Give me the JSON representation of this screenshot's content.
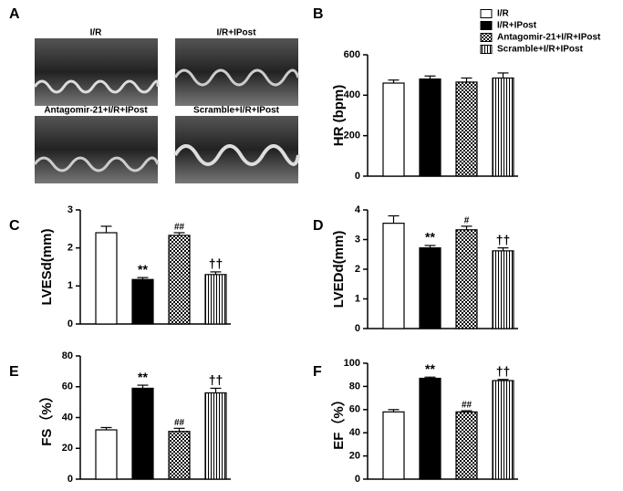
{
  "panels": [
    "A",
    "B",
    "C",
    "D",
    "E",
    "F"
  ],
  "images": [
    "I/R",
    "I/R+IPost",
    "Antagomir-21+I/R+IPost",
    "Scramble+I/R+IPost"
  ],
  "legend": [
    {
      "name": "I/R",
      "fill": "white"
    },
    {
      "name": "I/R+IPost",
      "fill": "black"
    },
    {
      "name": "Antagomir-21+I/R+IPost",
      "fill": "crosshatch"
    },
    {
      "name": "Scramble+I/R+IPost",
      "fill": "vertical"
    }
  ],
  "chart_data": [
    {
      "type": "bar",
      "ylabel": "HR (bpm)",
      "values": [
        460,
        480,
        465,
        485
      ],
      "errors": [
        15,
        15,
        20,
        25
      ],
      "annotations": [
        null,
        null,
        null,
        null
      ],
      "ylim": [
        0,
        600
      ],
      "yticks": [
        0,
        200,
        400,
        600
      ]
    },
    {
      "type": "bar",
      "ylabel": "LVESd(mm)",
      "values": [
        2.4,
        1.17,
        2.33,
        1.3
      ],
      "errors": [
        0.17,
        0.05,
        0.07,
        0.07
      ],
      "annotations": [
        null,
        "**",
        "##",
        "††"
      ],
      "ylim": [
        0,
        3
      ],
      "yticks": [
        0,
        1,
        2,
        3
      ]
    },
    {
      "type": "bar",
      "ylabel": "LVEDd(mm)",
      "values": [
        3.55,
        2.72,
        3.33,
        2.62
      ],
      "errors": [
        0.25,
        0.08,
        0.12,
        0.1
      ],
      "annotations": [
        null,
        "**",
        "#",
        "††"
      ],
      "ylim": [
        0,
        4
      ],
      "yticks": [
        0,
        1,
        2,
        3,
        4
      ]
    },
    {
      "type": "bar",
      "ylabel": "FS（%）",
      "values": [
        32,
        59,
        31,
        56
      ],
      "errors": [
        1.5,
        2,
        2,
        3
      ],
      "annotations": [
        null,
        "**",
        "##",
        "††"
      ],
      "ylim": [
        0,
        80
      ],
      "yticks": [
        0,
        20,
        40,
        60,
        80
      ]
    },
    {
      "type": "bar",
      "ylabel": "EF（%）",
      "values": [
        58,
        87,
        58,
        85
      ],
      "errors": [
        2,
        1,
        1,
        1
      ],
      "annotations": [
        null,
        "**",
        "##",
        "††"
      ],
      "ylim": [
        0,
        100
      ],
      "yticks": [
        0,
        20,
        40,
        60,
        80,
        100
      ]
    }
  ]
}
